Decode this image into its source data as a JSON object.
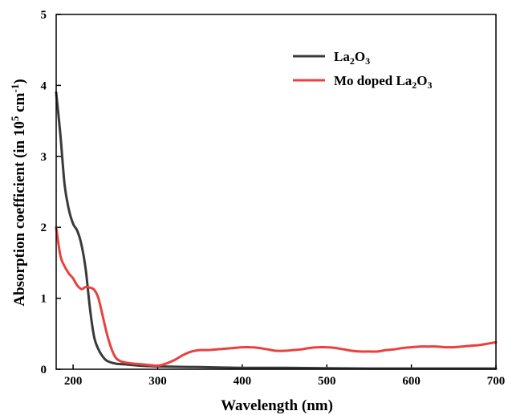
{
  "chart_data": {
    "type": "line",
    "xlabel": "Wavelength (nm)",
    "ylabel": {
      "prefix": "Absorption coefficient (in 10",
      "exp1": "5",
      "middle": " cm",
      "exp2": "-1",
      "suffix": ")"
    },
    "xlim": [
      180,
      700
    ],
    "ylim": [
      0,
      5
    ],
    "xticks": [
      200,
      300,
      400,
      500,
      600,
      700
    ],
    "yticks": [
      0,
      1,
      2,
      3,
      4,
      5
    ],
    "grid": false,
    "legend_position": "top-right",
    "series": [
      {
        "name": "La2O3",
        "legend": {
          "a": "La",
          "b": "2",
          "c": "O",
          "d": "3",
          "e": ""
        },
        "color": "#3a3a3a",
        "x": [
          180,
          185,
          190,
          195,
          200,
          205,
          210,
          215,
          220,
          225,
          230,
          235,
          240,
          250,
          260,
          270,
          280,
          300,
          350,
          400,
          450,
          500,
          550,
          600,
          650,
          700
        ],
        "y": [
          3.9,
          3.3,
          2.6,
          2.25,
          2.05,
          1.95,
          1.75,
          1.4,
          0.85,
          0.45,
          0.28,
          0.18,
          0.12,
          0.08,
          0.07,
          0.06,
          0.05,
          0.04,
          0.03,
          0.02,
          0.02,
          0.015,
          0.01,
          0.01,
          0.01,
          0.01
        ]
      },
      {
        "name": "Mo doped La2O3",
        "legend": {
          "a": "Mo doped La",
          "b": "2",
          "c": "O",
          "d": "3",
          "e": ""
        },
        "color": "#e8413e",
        "x": [
          180,
          185,
          190,
          195,
          200,
          205,
          210,
          215,
          220,
          225,
          230,
          235,
          240,
          245,
          250,
          255,
          260,
          270,
          280,
          290,
          300,
          310,
          320,
          330,
          340,
          350,
          360,
          370,
          380,
          390,
          400,
          410,
          420,
          430,
          440,
          450,
          460,
          470,
          480,
          490,
          500,
          510,
          520,
          530,
          540,
          550,
          560,
          570,
          580,
          590,
          600,
          610,
          620,
          630,
          640,
          650,
          660,
          670,
          680,
          690,
          700
        ],
        "y": [
          2.0,
          1.6,
          1.45,
          1.35,
          1.28,
          1.18,
          1.13,
          1.16,
          1.15,
          1.12,
          1.0,
          0.75,
          0.5,
          0.3,
          0.17,
          0.12,
          0.1,
          0.08,
          0.07,
          0.06,
          0.05,
          0.08,
          0.13,
          0.2,
          0.25,
          0.27,
          0.27,
          0.28,
          0.29,
          0.3,
          0.31,
          0.31,
          0.3,
          0.28,
          0.26,
          0.26,
          0.27,
          0.28,
          0.3,
          0.31,
          0.31,
          0.3,
          0.28,
          0.26,
          0.25,
          0.25,
          0.25,
          0.27,
          0.28,
          0.3,
          0.31,
          0.32,
          0.32,
          0.32,
          0.31,
          0.31,
          0.32,
          0.33,
          0.34,
          0.36,
          0.38
        ]
      }
    ]
  }
}
